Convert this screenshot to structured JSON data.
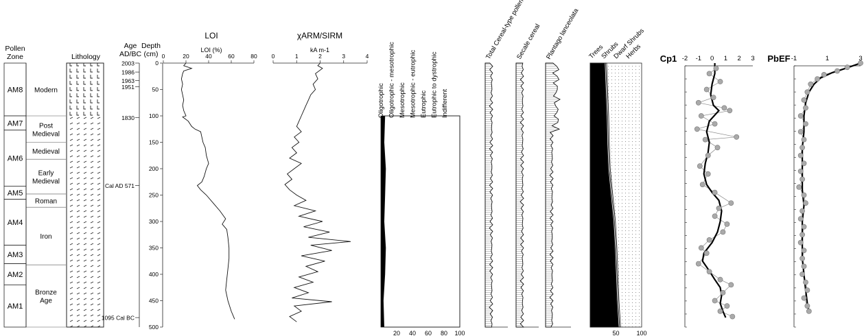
{
  "headers": {
    "pollen_zone": [
      "Pollen",
      "Zone"
    ],
    "lithology": "Lithology",
    "age": [
      "Age",
      "AD/BC"
    ],
    "depth": [
      "Depth",
      "(cm)"
    ],
    "loi_title": "LOI",
    "loi_unit": "LOI (%)",
    "xarm_title": "χARM/SIRM",
    "xarm_unit": "kA m-1",
    "cp1_title": "Cp1",
    "pbef_title": "PbEF"
  },
  "zones": [
    {
      "label": "AM8",
      "top": 0,
      "bottom": 100
    },
    {
      "label": "AM7",
      "top": 100,
      "bottom": 127
    },
    {
      "label": "AM6",
      "top": 127,
      "bottom": 233
    },
    {
      "label": "AM5",
      "top": 233,
      "bottom": 258
    },
    {
      "label": "AM4",
      "top": 258,
      "bottom": 345
    },
    {
      "label": "AM3",
      "top": 345,
      "bottom": 380
    },
    {
      "label": "AM2",
      "top": 380,
      "bottom": 420
    },
    {
      "label": "AM1",
      "top": 420,
      "bottom": 500
    }
  ],
  "periods": [
    {
      "label": [
        "Modern"
      ],
      "top": 0,
      "bottom": 100
    },
    {
      "label": [
        "Post",
        "Medieval"
      ],
      "top": 100,
      "bottom": 150
    },
    {
      "label": [
        "Medieval"
      ],
      "top": 150,
      "bottom": 182
    },
    {
      "label": [
        "Early",
        "Medieval"
      ],
      "top": 182,
      "bottom": 248
    },
    {
      "label": [
        "Roman"
      ],
      "top": 248,
      "bottom": 273
    },
    {
      "label": [
        "Iron"
      ],
      "top": 273,
      "bottom": 382
    },
    {
      "label": [
        "Bronze",
        "Age"
      ],
      "top": 382,
      "bottom": 500
    }
  ],
  "ages": [
    {
      "label": "2003",
      "depth": 0
    },
    {
      "label": "1986",
      "depth": 17
    },
    {
      "label": "1963",
      "depth": 33
    },
    {
      "label": "1951",
      "depth": 45
    },
    {
      "label": "1830",
      "depth": 103
    },
    {
      "label": "Cal AD 571",
      "depth": 232
    },
    {
      "label": "1095 Cal BC",
      "depth": 482
    }
  ],
  "chart_data": [
    {
      "type": "line",
      "title": "LOI",
      "xlabel": "LOI (%)",
      "ylabel": "Depth (cm)",
      "xlim": [
        0,
        80
      ],
      "ylim": [
        0,
        500
      ],
      "xticks": [
        0,
        20,
        40,
        60,
        80
      ],
      "yticks": [
        0,
        50,
        100,
        150,
        200,
        250,
        300,
        350,
        400,
        450,
        500
      ],
      "points": [
        [
          20,
          0
        ],
        [
          18,
          5
        ],
        [
          25,
          10
        ],
        [
          18,
          15
        ],
        [
          17,
          20
        ],
        [
          16,
          30
        ],
        [
          17,
          40
        ],
        [
          16,
          50
        ],
        [
          17,
          60
        ],
        [
          18,
          70
        ],
        [
          17,
          80
        ],
        [
          18,
          90
        ],
        [
          20,
          100
        ],
        [
          17,
          102
        ],
        [
          22,
          110
        ],
        [
          25,
          120
        ],
        [
          28,
          125
        ],
        [
          33,
          130
        ],
        [
          34,
          140
        ],
        [
          35,
          150
        ],
        [
          37,
          160
        ],
        [
          38,
          175
        ],
        [
          40,
          190
        ],
        [
          38,
          200
        ],
        [
          36,
          215
        ],
        [
          34,
          225
        ],
        [
          30,
          232
        ],
        [
          33,
          240
        ],
        [
          38,
          250
        ],
        [
          44,
          265
        ],
        [
          50,
          280
        ],
        [
          55,
          295
        ],
        [
          52,
          305
        ],
        [
          56,
          315
        ],
        [
          57,
          330
        ],
        [
          58,
          350
        ],
        [
          58,
          370
        ],
        [
          57,
          390
        ],
        [
          56,
          410
        ],
        [
          55,
          430
        ],
        [
          57,
          450
        ],
        [
          60,
          470
        ],
        [
          63,
          485
        ]
      ]
    },
    {
      "type": "line",
      "title": "χARM/SIRM",
      "xlabel": "kA m-1",
      "xlim": [
        0,
        4
      ],
      "ylim": [
        0,
        500
      ],
      "xticks": [
        0,
        1,
        2,
        3,
        4
      ],
      "points": [
        [
          2.0,
          0
        ],
        [
          1.9,
          5
        ],
        [
          2.1,
          10
        ],
        [
          1.8,
          20
        ],
        [
          1.9,
          30
        ],
        [
          1.7,
          40
        ],
        [
          1.8,
          50
        ],
        [
          1.6,
          60
        ],
        [
          1.5,
          70
        ],
        [
          1.4,
          80
        ],
        [
          1.3,
          90
        ],
        [
          1.2,
          100
        ],
        [
          1.1,
          110
        ],
        [
          1.0,
          120
        ],
        [
          1.2,
          130
        ],
        [
          0.9,
          140
        ],
        [
          1.1,
          150
        ],
        [
          0.8,
          160
        ],
        [
          1.0,
          170
        ],
        [
          0.7,
          180
        ],
        [
          1.2,
          190
        ],
        [
          0.9,
          200
        ],
        [
          0.6,
          210
        ],
        [
          0.8,
          220
        ],
        [
          0.5,
          230
        ],
        [
          0.7,
          240
        ],
        [
          1.0,
          250
        ],
        [
          1.4,
          260
        ],
        [
          0.9,
          270
        ],
        [
          1.8,
          280
        ],
        [
          1.1,
          290
        ],
        [
          2.1,
          300
        ],
        [
          1.3,
          310
        ],
        [
          2.4,
          320
        ],
        [
          1.5,
          330
        ],
        [
          3.3,
          338
        ],
        [
          1.6,
          345
        ],
        [
          2.5,
          355
        ],
        [
          1.2,
          365
        ],
        [
          2.2,
          375
        ],
        [
          1.4,
          385
        ],
        [
          1.9,
          395
        ],
        [
          1.1,
          405
        ],
        [
          1.7,
          415
        ],
        [
          0.9,
          425
        ],
        [
          1.5,
          435
        ],
        [
          0.8,
          445
        ],
        [
          2.5,
          452
        ],
        [
          0.9,
          460
        ],
        [
          1.2,
          470
        ],
        [
          0.7,
          480
        ],
        [
          1.0,
          490
        ]
      ]
    },
    {
      "type": "area",
      "x_ticks": [
        20,
        40,
        60,
        80,
        100
      ],
      "xlim": [
        0,
        100
      ],
      "ylim": [
        0,
        500
      ],
      "series": [
        {
          "name": "Oligotrophic"
        },
        {
          "name": "Oligotrophic - mesotrophic"
        },
        {
          "name": "Mesotrophic"
        },
        {
          "name": "Mesotrophic - eutrophic"
        },
        {
          "name": "Eutrophic"
        },
        {
          "name": "Eutrophic to dystrophic"
        },
        {
          "name": "Indifferent"
        }
      ],
      "boundaries": [
        {
          "depth": [
            100,
            150,
            200,
            250,
            300,
            350,
            400,
            450,
            500
          ],
          "values": [
            5,
            4,
            6,
            5,
            4,
            6,
            5,
            3,
            4
          ]
        },
        {
          "depth": [
            100,
            150,
            200,
            250,
            300,
            350,
            400,
            450,
            500
          ],
          "values": [
            8,
            7,
            9,
            8,
            6,
            9,
            7,
            5,
            6
          ]
        },
        {
          "depth": [
            100,
            150,
            200,
            250,
            300,
            350,
            400,
            450,
            500
          ],
          "values": [
            10,
            9,
            11,
            10,
            8,
            11,
            9,
            7,
            8
          ]
        },
        {
          "depth": [
            100,
            150,
            200,
            250,
            300,
            350,
            400,
            450,
            500
          ],
          "values": [
            55,
            45,
            38,
            25,
            30,
            28,
            22,
            12,
            18
          ]
        },
        {
          "depth": [
            100,
            150,
            200,
            250,
            300,
            350,
            400,
            450,
            500
          ],
          "values": [
            85,
            80,
            82,
            78,
            80,
            83,
            85,
            82,
            84
          ]
        },
        {
          "depth": [
            100,
            150,
            200,
            250,
            300,
            350,
            400,
            450,
            500
          ],
          "values": [
            92,
            90,
            91,
            88,
            90,
            92,
            93,
            91,
            92
          ]
        }
      ]
    },
    {
      "type": "area",
      "title": "Total Cereal-type pollen",
      "ylim": [
        0,
        500
      ]
    },
    {
      "type": "area",
      "title": "Secale cereal",
      "ylim": [
        0,
        500
      ]
    },
    {
      "type": "area",
      "title": "Plantago lanceolata",
      "ylim": [
        0,
        500
      ]
    },
    {
      "type": "area",
      "xlim": [
        0,
        100
      ],
      "xticks": [
        50,
        100
      ],
      "ylim": [
        0,
        500
      ],
      "series": [
        {
          "name": "Trees"
        },
        {
          "name": "Shrubs"
        },
        {
          "name": "Dwarf Shrubs"
        },
        {
          "name": "Herbs"
        }
      ],
      "boundaries": [
        {
          "depth": [
            0,
            50,
            100,
            150,
            200,
            250,
            300,
            350,
            400,
            450,
            500
          ],
          "values": [
            28,
            30,
            32,
            33,
            35,
            40,
            45,
            48,
            50,
            52,
            55
          ]
        },
        {
          "depth": [
            0,
            50,
            100,
            150,
            200,
            250,
            300,
            350,
            400,
            450,
            500
          ],
          "values": [
            30,
            32,
            34,
            35,
            37,
            42,
            47,
            50,
            52,
            54,
            57
          ]
        },
        {
          "depth": [
            0,
            50,
            100,
            150,
            200,
            250,
            300,
            350,
            400,
            450,
            500
          ],
          "values": [
            32,
            34,
            36,
            37,
            39,
            44,
            49,
            52,
            54,
            56,
            59
          ]
        }
      ]
    },
    {
      "type": "scatter",
      "title": "Cp1",
      "xlim": [
        -2,
        3
      ],
      "ylim": [
        0,
        500
      ],
      "xticks": [
        -2,
        -1,
        0,
        1,
        2,
        3
      ],
      "points": [
        [
          0.3,
          10
        ],
        [
          -0.2,
          20
        ],
        [
          0.6,
          35
        ],
        [
          -0.4,
          50
        ],
        [
          0.1,
          65
        ],
        [
          -1.0,
          75
        ],
        [
          0.9,
          85
        ],
        [
          1.3,
          90
        ],
        [
          -0.8,
          100
        ],
        [
          0.2,
          115
        ],
        [
          -1.1,
          125
        ],
        [
          1.8,
          140
        ],
        [
          -0.5,
          145
        ],
        [
          0.4,
          160
        ],
        [
          -0.3,
          175
        ],
        [
          -0.9,
          195
        ],
        [
          -0.3,
          210
        ],
        [
          -0.7,
          230
        ],
        [
          0.2,
          245
        ],
        [
          1.4,
          265
        ],
        [
          0.5,
          275
        ],
        [
          0.2,
          290
        ],
        [
          1.1,
          305
        ],
        [
          0.8,
          320
        ],
        [
          -0.2,
          335
        ],
        [
          -0.8,
          350
        ],
        [
          -0.4,
          360
        ],
        [
          -1.0,
          380
        ],
        [
          -0.2,
          395
        ],
        [
          0.6,
          410
        ],
        [
          1.4,
          420
        ],
        [
          0.8,
          435
        ],
        [
          0.2,
          450
        ],
        [
          1.1,
          460
        ],
        [
          0.6,
          470
        ],
        [
          1.5,
          480
        ]
      ],
      "smooth": [
        [
          0.2,
          0
        ],
        [
          0.2,
          20
        ],
        [
          0.0,
          40
        ],
        [
          -0.1,
          60
        ],
        [
          0.1,
          80
        ],
        [
          0.5,
          90
        ],
        [
          -0.2,
          110
        ],
        [
          -0.4,
          130
        ],
        [
          -0.2,
          150
        ],
        [
          -0.3,
          170
        ],
        [
          -0.5,
          190
        ],
        [
          -0.6,
          210
        ],
        [
          -0.4,
          230
        ],
        [
          0.0,
          245
        ],
        [
          0.5,
          260
        ],
        [
          0.7,
          280
        ],
        [
          0.6,
          300
        ],
        [
          0.4,
          320
        ],
        [
          0.0,
          340
        ],
        [
          -0.6,
          360
        ],
        [
          -0.7,
          375
        ],
        [
          -0.3,
          390
        ],
        [
          0.2,
          410
        ],
        [
          0.6,
          425
        ],
        [
          0.7,
          440
        ],
        [
          0.6,
          455
        ],
        [
          0.8,
          470
        ],
        [
          1.0,
          482
        ]
      ]
    },
    {
      "type": "scatter",
      "title": "PbEF",
      "xlim": [
        -1,
        3
      ],
      "ylim": [
        0,
        500
      ],
      "xticks": [
        -1,
        1,
        3
      ],
      "points": [
        [
          3.0,
          0
        ],
        [
          2.2,
          8
        ],
        [
          1.6,
          15
        ],
        [
          0.8,
          22
        ],
        [
          0.4,
          30
        ],
        [
          0.0,
          40
        ],
        [
          -0.2,
          55
        ],
        [
          -0.4,
          70
        ],
        [
          -0.3,
          85
        ],
        [
          -0.6,
          100
        ],
        [
          -0.3,
          115
        ],
        [
          -0.6,
          130
        ],
        [
          -0.4,
          145
        ],
        [
          -0.5,
          160
        ],
        [
          -0.6,
          175
        ],
        [
          -0.4,
          190
        ],
        [
          -0.6,
          205
        ],
        [
          -0.5,
          220
        ],
        [
          -0.7,
          235
        ],
        [
          -0.4,
          250
        ],
        [
          -0.3,
          265
        ],
        [
          -0.5,
          280
        ],
        [
          -0.6,
          295
        ],
        [
          -0.4,
          310
        ],
        [
          -0.5,
          325
        ],
        [
          -0.6,
          340
        ],
        [
          -0.4,
          355
        ],
        [
          -0.5,
          370
        ],
        [
          -0.4,
          385
        ],
        [
          -0.5,
          400
        ],
        [
          -0.3,
          415
        ],
        [
          -0.2,
          430
        ],
        [
          -0.4,
          445
        ],
        [
          -0.2,
          460
        ],
        [
          -0.1,
          470
        ]
      ],
      "smooth": [
        [
          3.0,
          0
        ],
        [
          2.1,
          10
        ],
        [
          1.3,
          18
        ],
        [
          0.6,
          28
        ],
        [
          0.2,
          40
        ],
        [
          -0.1,
          55
        ],
        [
          -0.3,
          75
        ],
        [
          -0.4,
          100
        ],
        [
          -0.4,
          130
        ],
        [
          -0.5,
          160
        ],
        [
          -0.5,
          200
        ],
        [
          -0.5,
          240
        ],
        [
          -0.4,
          270
        ],
        [
          -0.5,
          300
        ],
        [
          -0.5,
          340
        ],
        [
          -0.5,
          370
        ],
        [
          -0.4,
          400
        ],
        [
          -0.3,
          430
        ],
        [
          -0.2,
          455
        ],
        [
          -0.1,
          472
        ]
      ]
    }
  ]
}
